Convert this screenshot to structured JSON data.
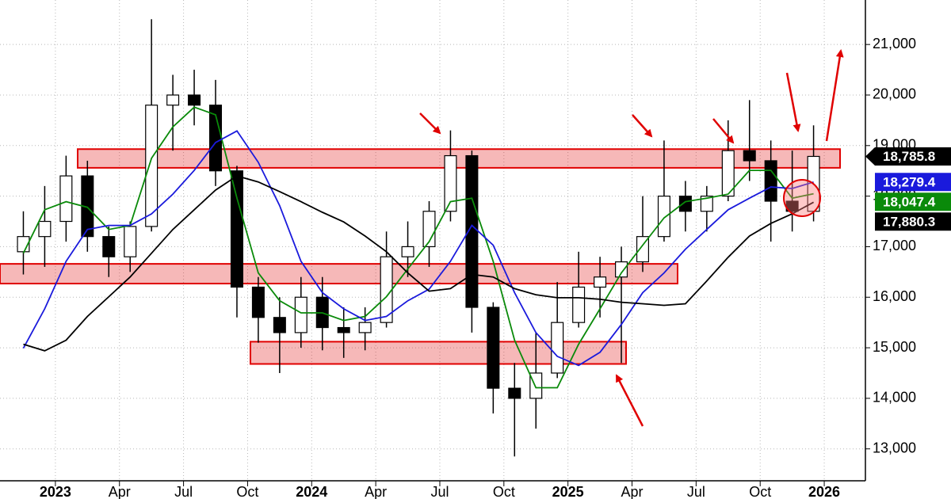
{
  "chart_data": {
    "type": "candlestick",
    "categories": [
      null,
      null,
      "2023",
      null,
      null,
      "Apr",
      null,
      null,
      "Jul",
      null,
      null,
      "Oct",
      null,
      null,
      "2024",
      null,
      null,
      "Apr",
      null,
      null,
      "Jul",
      null,
      null,
      "Oct",
      null,
      null,
      "2025",
      null,
      null,
      "Apr",
      null,
      null,
      "Jul",
      null,
      null,
      "Oct",
      null,
      null,
      "2026"
    ],
    "open": [
      16900,
      17200,
      17500,
      18400,
      17200,
      16800,
      17400,
      19800,
      20000,
      19800,
      18500,
      16200,
      15600,
      15300,
      16000,
      15400,
      15300,
      15500,
      16800,
      17000,
      17700,
      18800,
      15800,
      14200,
      14000,
      14500,
      15500,
      16200,
      16400,
      16700,
      17200,
      18000,
      17700,
      18000,
      18900,
      18700,
      17900,
      17700,
      null
    ],
    "high": [
      17700,
      18200,
      18800,
      18700,
      17400,
      17500,
      21500,
      20400,
      20500,
      20300,
      18600,
      16400,
      16000,
      16400,
      16400,
      15800,
      15800,
      17300,
      17500,
      17900,
      19300,
      18900,
      15900,
      14700,
      15300,
      16300,
      16900,
      16800,
      17000,
      18000,
      19100,
      18300,
      18200,
      19500,
      19900,
      19100,
      18900,
      19400,
      null
    ],
    "low": [
      16450,
      16600,
      17100,
      16900,
      16400,
      16500,
      17300,
      18900,
      19400,
      18200,
      15600,
      15100,
      14500,
      15000,
      14950,
      14800,
      14950,
      15400,
      16400,
      16600,
      17500,
      15300,
      13700,
      12850,
      13400,
      14400,
      15400,
      15600,
      14700,
      16500,
      17100,
      17300,
      17300,
      17900,
      18300,
      17100,
      17300,
      17500,
      null
    ],
    "close": [
      17200,
      17500,
      18400,
      17200,
      16800,
      17400,
      19800,
      20000,
      19800,
      18500,
      16200,
      15600,
      15300,
      16000,
      15400,
      15300,
      15500,
      16800,
      17000,
      17700,
      18800,
      15800,
      14200,
      14000,
      14500,
      15500,
      16200,
      16400,
      16700,
      17200,
      18000,
      17700,
      18000,
      18900,
      18700,
      17900,
      17700,
      18785.8,
      null
    ],
    "candle_color": "#000000",
    "moving_averages": [
      {
        "color": "#0a8a0a",
        "values": [
          16870,
          17730,
          17890,
          17780,
          17340,
          17420,
          18750,
          19370,
          19760,
          19610,
          17960,
          16480,
          15930,
          15690,
          15690,
          15540,
          15620,
          16010,
          16560,
          17100,
          17890,
          17960,
          16710,
          15150,
          14210,
          14210,
          15070,
          15770,
          16480,
          17030,
          17570,
          17890,
          17960,
          18040,
          18510,
          18510,
          17960,
          18047.4,
          null
        ]
      },
      {
        "color": "#1a1adc",
        "values": [
          14990,
          15770,
          16710,
          17340,
          17420,
          17420,
          17650,
          18040,
          18510,
          19060,
          19290,
          18670,
          17810,
          16710,
          16090,
          15770,
          15540,
          15620,
          15930,
          16160,
          16710,
          17420,
          17030,
          16090,
          15300,
          14830,
          14650,
          14910,
          15460,
          16090,
          16480,
          16950,
          17340,
          17730,
          17960,
          18180,
          18150,
          18279.4,
          null
        ]
      },
      {
        "color": "#000000",
        "values": [
          15070,
          14940,
          15150,
          15620,
          16010,
          16400,
          16870,
          17340,
          17730,
          18120,
          18400,
          18280,
          18090,
          17890,
          17680,
          17490,
          17210,
          16900,
          16480,
          16120,
          16170,
          16450,
          16400,
          16170,
          16050,
          15990,
          15990,
          15960,
          15900,
          15870,
          15840,
          15870,
          16320,
          16790,
          17210,
          17460,
          17650,
          17880.3,
          null
        ]
      }
    ],
    "zones": [
      {
        "low": 18560,
        "high": 18930,
        "color": "#e00000"
      },
      {
        "low": 16270,
        "high": 16660,
        "color": "#e00000"
      },
      {
        "low": 14680,
        "high": 15120,
        "color": "#e00000"
      }
    ],
    "last_values": [
      {
        "value": 18785.8,
        "label": "18,785.8",
        "color": "#000000"
      },
      {
        "value": 18279.4,
        "label": "18,279.4",
        "color": "#1a1adc"
      },
      {
        "value": 18047.4,
        "label": "18,047.4",
        "color": "#0a8a0a"
      },
      {
        "value": 17880.3,
        "label": "17,880.3",
        "color": "#000000"
      }
    ],
    "ylim": [
      12400,
      21880
    ],
    "yticks": [
      {
        "value": 13000,
        "label": "13,000"
      },
      {
        "value": 14000,
        "label": "14,000"
      },
      {
        "value": 15000,
        "label": "15,000"
      },
      {
        "value": 16000,
        "label": "16,000"
      },
      {
        "value": 17000,
        "label": "17,000"
      },
      {
        "value": 18000,
        "label": "18,000"
      },
      {
        "value": 19000,
        "label": "19,000"
      },
      {
        "value": 20000,
        "label": "20,000"
      },
      {
        "value": 21000,
        "label": "21,000"
      }
    ],
    "grid": true
  }
}
